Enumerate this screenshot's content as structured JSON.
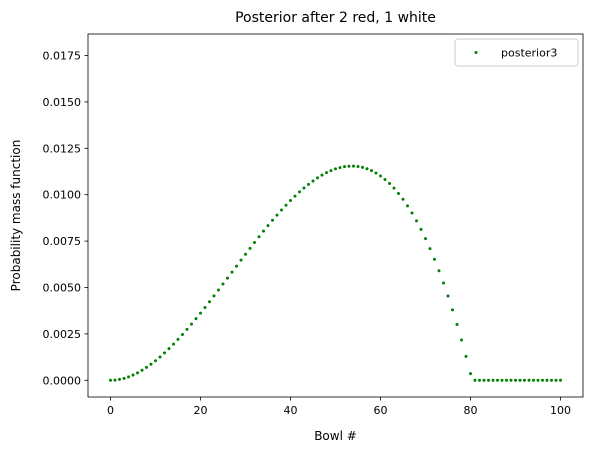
{
  "chart_data": {
    "type": "scatter",
    "title": "Posterior after 2 red, 1 white",
    "xlabel": "Bowl #",
    "ylabel": "Probability mass function",
    "xlim": [
      -5,
      105
    ],
    "ylim": [
      -0.0009,
      0.01866
    ],
    "xticks": [
      0,
      20,
      40,
      60,
      80,
      100
    ],
    "xtick_labels": [
      "0",
      "20",
      "40",
      "60",
      "80",
      "100"
    ],
    "yticks": [
      0.0,
      0.0025,
      0.005,
      0.0075,
      0.01,
      0.0125,
      0.015,
      0.0175
    ],
    "ytick_labels": [
      "0.0000",
      "0.0025",
      "0.0050",
      "0.0075",
      "0.0100",
      "0.0125",
      "0.0150",
      "0.0175"
    ],
    "grid": false,
    "legend": {
      "placement": "upper-right",
      "entries": [
        "posterior3"
      ]
    },
    "series": [
      {
        "name": "posterior3",
        "color": "#008000",
        "x": [
          0,
          1,
          2,
          3,
          4,
          5,
          6,
          7,
          8,
          9,
          10,
          11,
          12,
          13,
          14,
          15,
          16,
          17,
          18,
          19,
          20,
          21,
          22,
          23,
          24,
          25,
          26,
          27,
          28,
          29,
          30,
          31,
          32,
          33,
          34,
          35,
          36,
          37,
          38,
          39,
          40,
          41,
          42,
          43,
          44,
          45,
          46,
          47,
          48,
          49,
          50,
          51,
          52,
          53,
          54,
          55,
          56,
          57,
          58,
          59,
          60,
          61,
          62,
          63,
          64,
          65,
          66,
          67,
          68,
          69,
          70,
          71,
          72,
          73,
          74,
          75,
          76,
          77,
          78,
          79,
          80,
          81,
          82,
          83,
          84,
          85,
          86,
          87,
          88,
          89,
          90,
          91,
          92,
          93,
          94,
          95,
          96,
          97,
          98,
          99,
          100
        ],
        "y": [
          0,
          1.19e-05,
          4.7e-05,
          0.0001045,
          0.0001833,
          0.0002826,
          0.0004016,
          0.0005392,
          0.0006946,
          0.0008669,
          0.0010551,
          0.0012585,
          0.001476,
          0.0017068,
          0.0019499,
          0.0022046,
          0.0024699,
          0.0027448,
          0.0030285,
          0.0033202,
          0.0036189,
          0.0039237,
          0.0042337,
          0.0045481,
          0.0048659,
          0.0051862,
          0.0055081,
          0.0058309,
          0.0061534,
          0.0064749,
          0.0067945,
          0.0071112,
          0.0074242,
          0.0077325,
          0.0080353,
          0.0083316,
          0.0086206,
          0.0089013,
          0.0091729,
          0.0094345,
          0.0096851,
          0.0099239,
          0.0101499,
          0.0103623,
          0.0105601,
          0.0107425,
          0.0109085,
          0.0110572,
          0.0111878,
          0.0112993,
          0.0113909,
          0.0114615,
          0.0115104,
          0.0115366,
          0.0115392,
          0.0115173,
          0.01147,
          0.0113964,
          0.0112956,
          0.0111667,
          0.0110088,
          0.0108209,
          0.0106023,
          0.0103519,
          0.0100688,
          0.0097522,
          0.0094012,
          0.0090148,
          0.0085921,
          0.0081323,
          0.0076343,
          0.0070974,
          0.0065205,
          0.0059028,
          0.0052434,
          0.0045413,
          0.0037957,
          0.0030056,
          0.0021701,
          0.0012883,
          0.0003592,
          0,
          0,
          0,
          0,
          0,
          0,
          0,
          0,
          0,
          0,
          0,
          0,
          0,
          0,
          0,
          0,
          0,
          0,
          0,
          0
        ]
      }
    ]
  }
}
